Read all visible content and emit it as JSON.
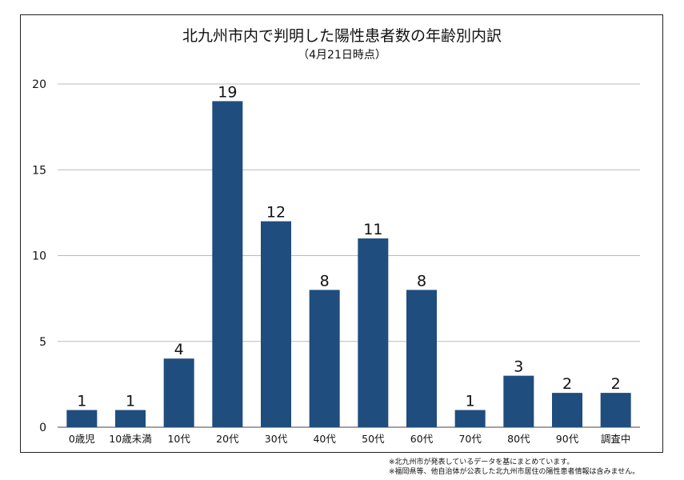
{
  "chart_data": {
    "type": "bar",
    "title": "北九州市内で判明した陽性患者数の年齢別内訳",
    "subtitle": "（4月21日時点）",
    "categories": [
      "0歳児",
      "10歳未満",
      "10代",
      "20代",
      "30代",
      "40代",
      "50代",
      "60代",
      "70代",
      "80代",
      "90代",
      "調査中"
    ],
    "values": [
      1,
      1,
      4,
      19,
      12,
      8,
      11,
      8,
      1,
      3,
      2,
      2
    ],
    "yticks": [
      0,
      5,
      10,
      15,
      20
    ],
    "ylim": [
      0,
      20
    ],
    "xlabel": "",
    "ylabel": "",
    "grid": true,
    "bar_color": "#1f4d7e"
  },
  "notes": [
    "※北九州市が発表しているデータを基にまとめています。",
    "※福岡県等、他自治体が公表した北九州市居住の陽性患者情報は含みません。"
  ]
}
